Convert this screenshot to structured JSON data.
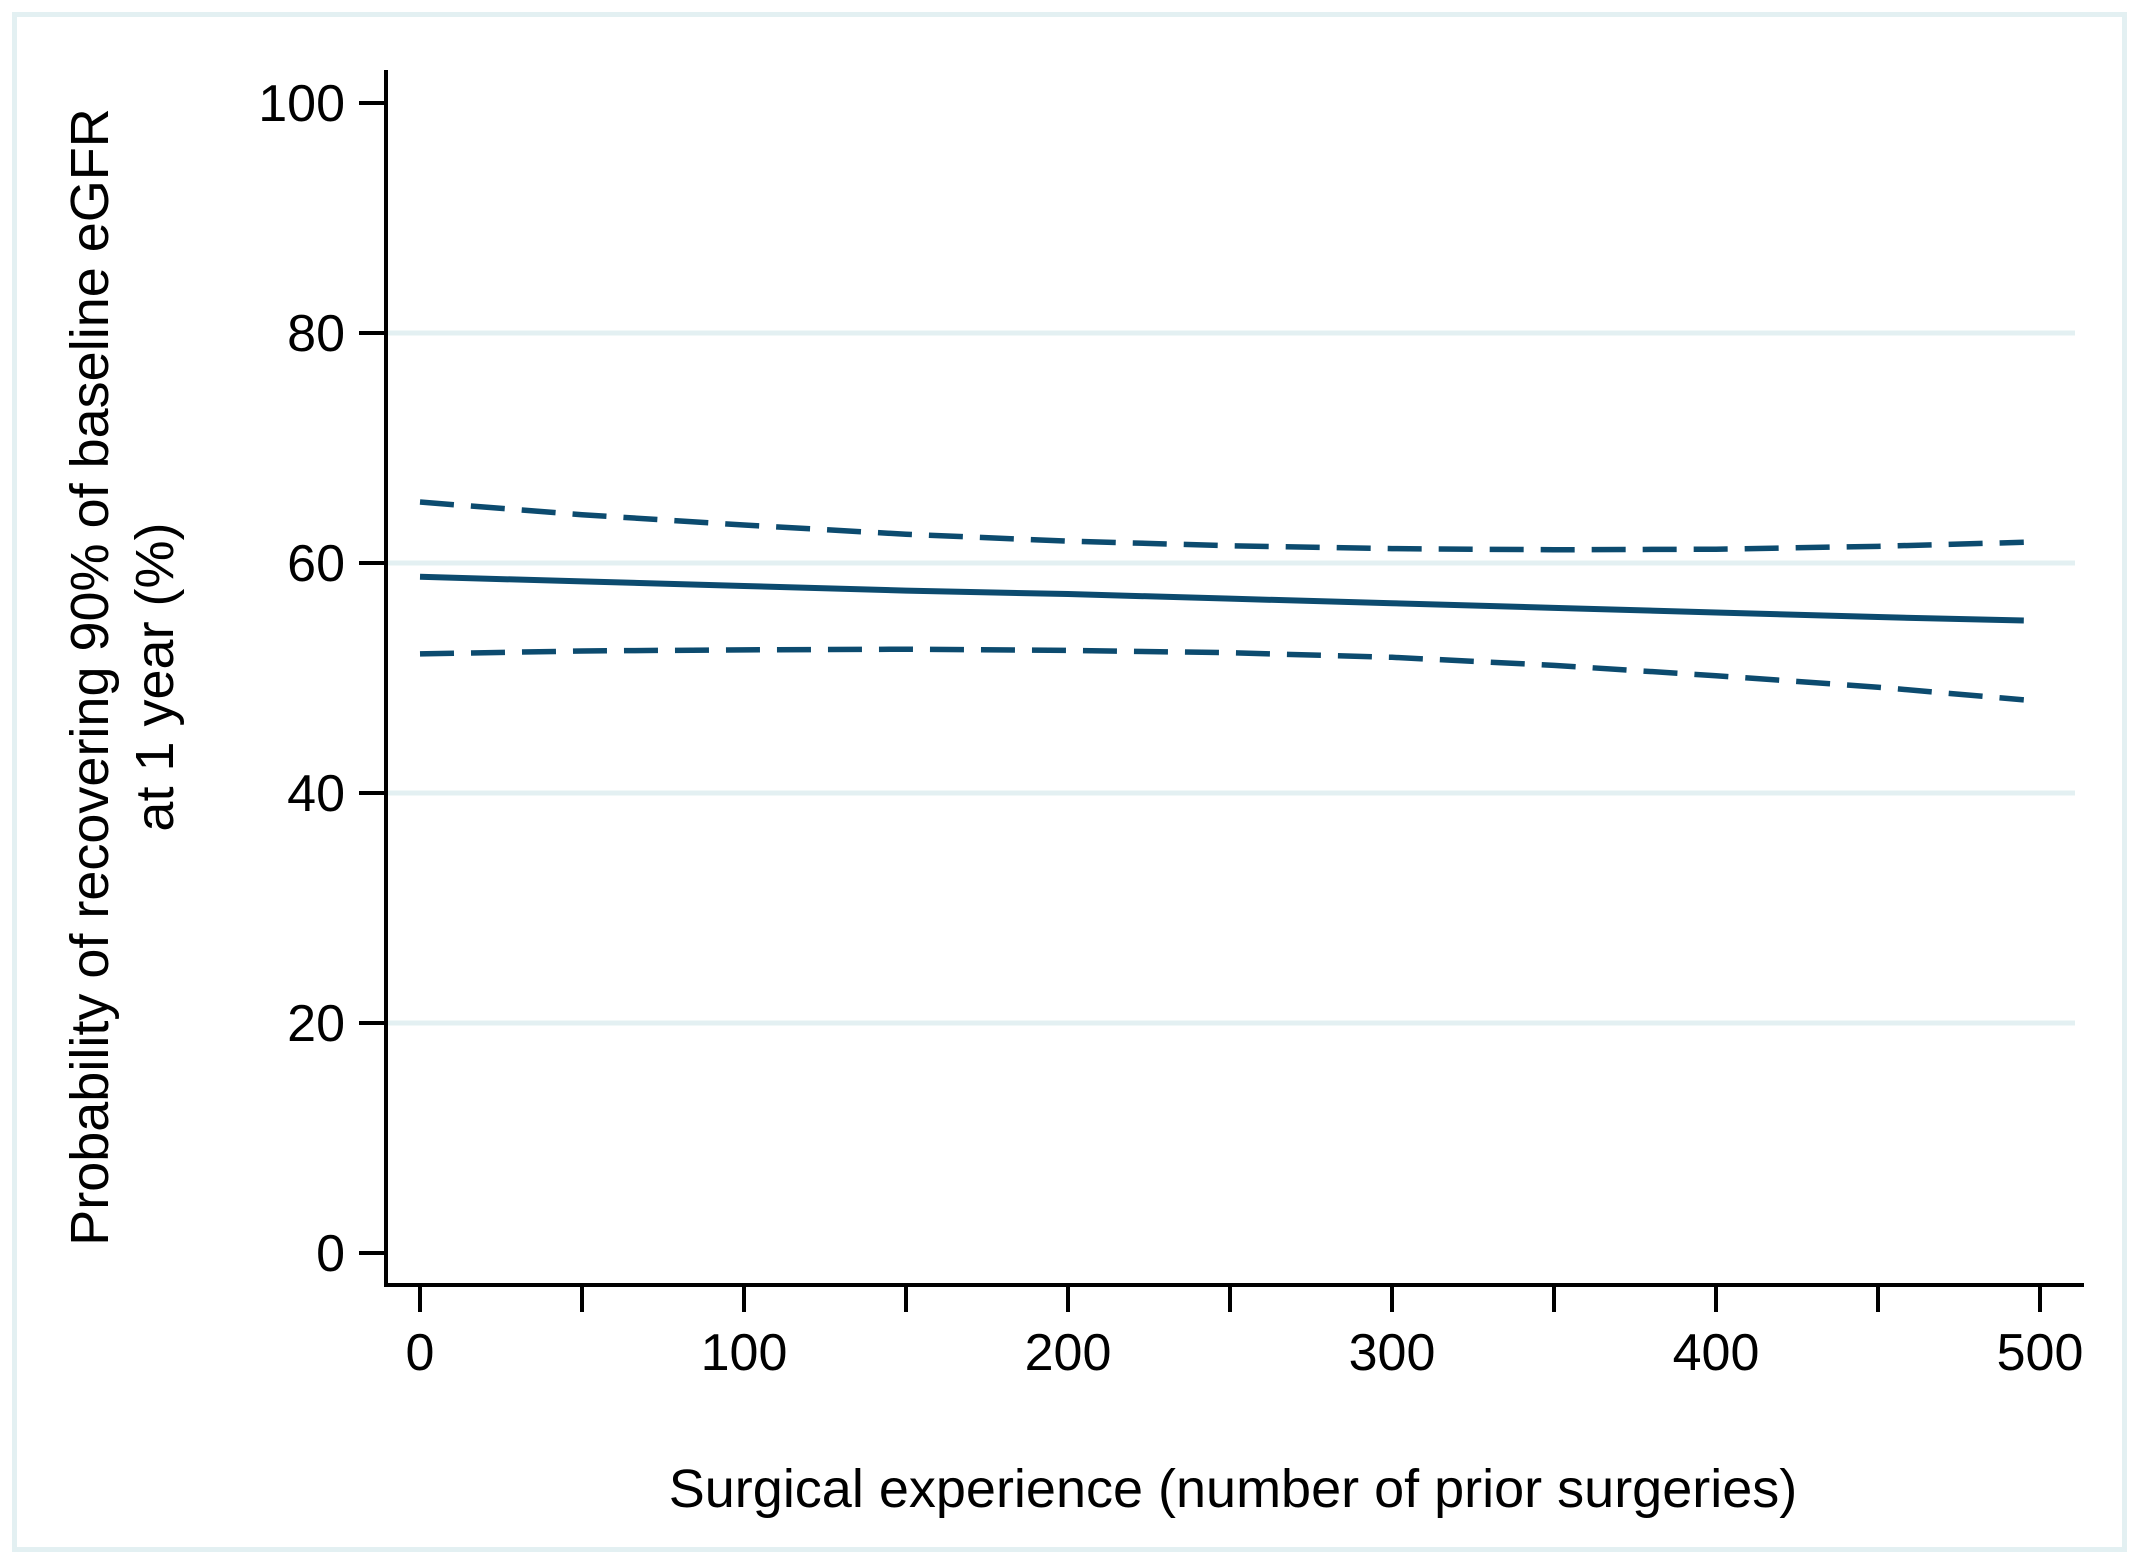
{
  "figure": {
    "background_color": "#ffffff",
    "border_color": "#e3f0f2",
    "axis_color": "#000000",
    "grid_color": "#e3f0f2",
    "line_color": "#0c4b6f"
  },
  "chart_data": {
    "type": "line",
    "title": "",
    "xlabel": "Surgical experience (number of prior surgeries)",
    "ylabel_line1": "Probability of recovering 90% of baseline eGFR",
    "ylabel_line2": "at 1 year (%)",
    "xlim": [
      0,
      500
    ],
    "ylim": [
      0,
      100
    ],
    "x_major_ticks": [
      0,
      100,
      200,
      300,
      400,
      500
    ],
    "x_minor_ticks": [
      50,
      150,
      250,
      350,
      450
    ],
    "y_ticks": [
      0,
      20,
      40,
      60,
      80,
      100
    ],
    "gridline_values": [
      20,
      40,
      60,
      80
    ],
    "grid_on": true,
    "legend": "none",
    "x": [
      0,
      50,
      100,
      150,
      200,
      250,
      300,
      350,
      400,
      450,
      495
    ],
    "series": [
      {
        "name": "predicted-probability",
        "style": "solid",
        "values": [
          58.8,
          58.4,
          58.0,
          57.6,
          57.3,
          56.9,
          56.5,
          56.1,
          55.7,
          55.3,
          55.0
        ]
      },
      {
        "name": "upper-confidence-limit",
        "style": "dashed",
        "values": [
          65.3,
          64.2,
          63.3,
          62.5,
          61.9,
          61.5,
          61.25,
          61.15,
          61.2,
          61.45,
          61.8
        ]
      },
      {
        "name": "lower-confidence-limit",
        "style": "dashed",
        "values": [
          52.1,
          52.35,
          52.45,
          52.5,
          52.4,
          52.2,
          51.8,
          51.1,
          50.2,
          49.2,
          48.1
        ]
      }
    ]
  }
}
